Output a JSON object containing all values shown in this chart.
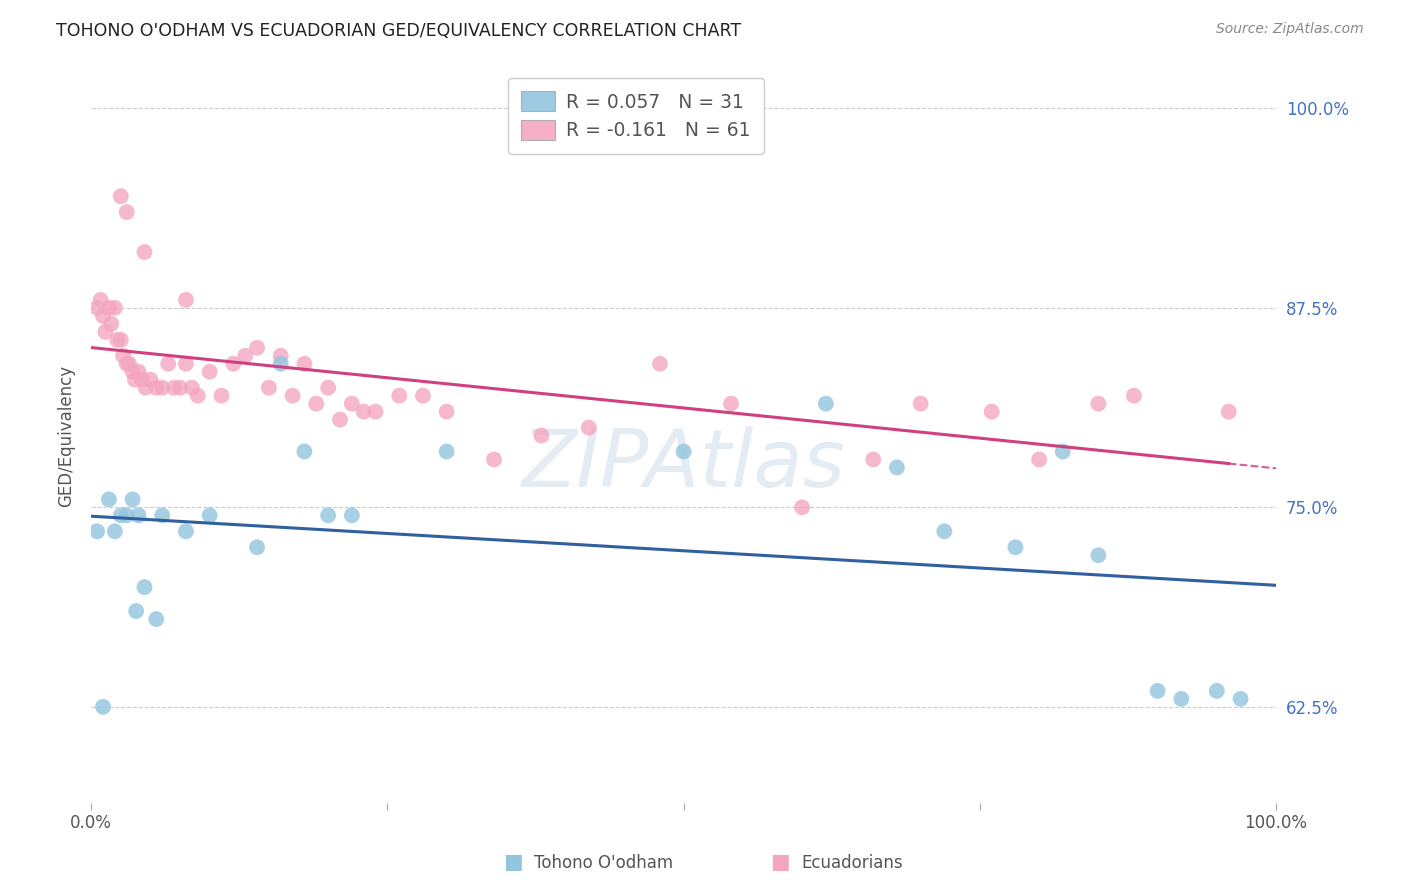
{
  "title": "TOHONO O'ODHAM VS ECUADORIAN GED/EQUIVALENCY CORRELATION CHART",
  "source": "Source: ZipAtlas.com",
  "ylabel": "GED/Equivalency",
  "legend_label1": "Tohono O'odham",
  "legend_label2": "Ecuadorians",
  "blue_color": "#92c5de",
  "pink_color": "#f4a6c0",
  "blue_line_color": "#3060a0",
  "pink_line_color": "#d04080",
  "watermark": "ZIPAtlas",
  "blue_x": [
    0.005,
    0.01,
    0.015,
    0.02,
    0.025,
    0.03,
    0.035,
    0.04,
    0.06,
    0.08,
    0.1,
    0.14,
    0.18,
    0.2,
    0.22,
    0.3,
    0.5,
    0.62,
    0.68,
    0.72,
    0.78,
    0.82,
    0.85,
    0.9,
    0.92,
    0.95,
    0.97,
    0.038,
    0.045,
    0.055,
    0.16
  ],
  "blue_y": [
    0.735,
    0.625,
    0.755,
    0.735,
    0.745,
    0.745,
    0.755,
    0.745,
    0.745,
    0.735,
    0.745,
    0.725,
    0.785,
    0.745,
    0.745,
    0.785,
    0.785,
    0.815,
    0.775,
    0.735,
    0.725,
    0.785,
    0.72,
    0.635,
    0.63,
    0.635,
    0.63,
    0.685,
    0.7,
    0.68,
    0.84
  ],
  "pink_x": [
    0.005,
    0.008,
    0.01,
    0.012,
    0.015,
    0.017,
    0.02,
    0.022,
    0.025,
    0.027,
    0.03,
    0.032,
    0.035,
    0.037,
    0.04,
    0.043,
    0.046,
    0.05,
    0.055,
    0.06,
    0.065,
    0.07,
    0.075,
    0.08,
    0.085,
    0.09,
    0.1,
    0.11,
    0.12,
    0.13,
    0.14,
    0.15,
    0.16,
    0.17,
    0.18,
    0.19,
    0.2,
    0.21,
    0.22,
    0.23,
    0.24,
    0.26,
    0.28,
    0.3,
    0.34,
    0.38,
    0.42,
    0.48,
    0.54,
    0.6,
    0.66,
    0.7,
    0.76,
    0.8,
    0.85,
    0.88,
    0.96,
    0.025,
    0.03,
    0.045,
    0.08
  ],
  "pink_y": [
    0.875,
    0.88,
    0.87,
    0.86,
    0.875,
    0.865,
    0.875,
    0.855,
    0.855,
    0.845,
    0.84,
    0.84,
    0.835,
    0.83,
    0.835,
    0.83,
    0.825,
    0.83,
    0.825,
    0.825,
    0.84,
    0.825,
    0.825,
    0.84,
    0.825,
    0.82,
    0.835,
    0.82,
    0.84,
    0.845,
    0.85,
    0.825,
    0.845,
    0.82,
    0.84,
    0.815,
    0.825,
    0.805,
    0.815,
    0.81,
    0.81,
    0.82,
    0.82,
    0.81,
    0.78,
    0.795,
    0.8,
    0.84,
    0.815,
    0.75,
    0.78,
    0.815,
    0.81,
    0.78,
    0.815,
    0.82,
    0.81,
    0.945,
    0.935,
    0.91,
    0.88
  ],
  "ylim_low": 0.565,
  "ylim_high": 1.025,
  "yticks": [
    0.625,
    0.75,
    0.875,
    1.0
  ],
  "ytick_labels": [
    "62.5%",
    "75.0%",
    "87.5%",
    "100.0%"
  ],
  "xticks": [
    0.0,
    0.25,
    0.5,
    0.75,
    1.0
  ],
  "xtick_labels_show": [
    "0.0%",
    "",
    "",
    "",
    "100.0%"
  ]
}
